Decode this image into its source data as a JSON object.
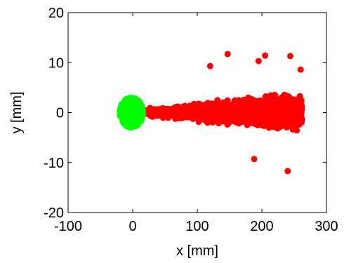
{
  "chart_data": {
    "type": "scatter",
    "xlabel": "x [mm]",
    "ylabel": "y [mm]",
    "xlim": [
      -100,
      300
    ],
    "ylim": [
      -20,
      20
    ],
    "x_ticks": [
      -100,
      0,
      100,
      200,
      300
    ],
    "y_ticks": [
      -20,
      -10,
      0,
      10,
      20
    ],
    "x_tick_labels": [
      "-100",
      "0",
      "100",
      "200",
      "300"
    ],
    "y_tick_labels": [
      "-20",
      "-10",
      "0",
      "10",
      "20"
    ],
    "grid": false,
    "series": [
      {
        "color": "#ff0000",
        "distribution": "cone",
        "x_range": [
          -20,
          262
        ],
        "y_halfwidth_at_x_min": 1,
        "y_halfwidth_at_x_max": 9,
        "outliers": [
          [
            147,
            11.7
          ],
          [
            205,
            11.4
          ],
          [
            244,
            11.3
          ],
          [
            120,
            9.3
          ],
          [
            240,
            -11.7
          ],
          [
            188,
            -9.3
          ],
          [
            195,
            10.3
          ],
          [
            260,
            8.6
          ]
        ]
      },
      {
        "color": "#00ff00",
        "distribution": "blob",
        "center": [
          -2,
          0
        ],
        "x_radius": 18,
        "y_radius": 3
      }
    ]
  }
}
